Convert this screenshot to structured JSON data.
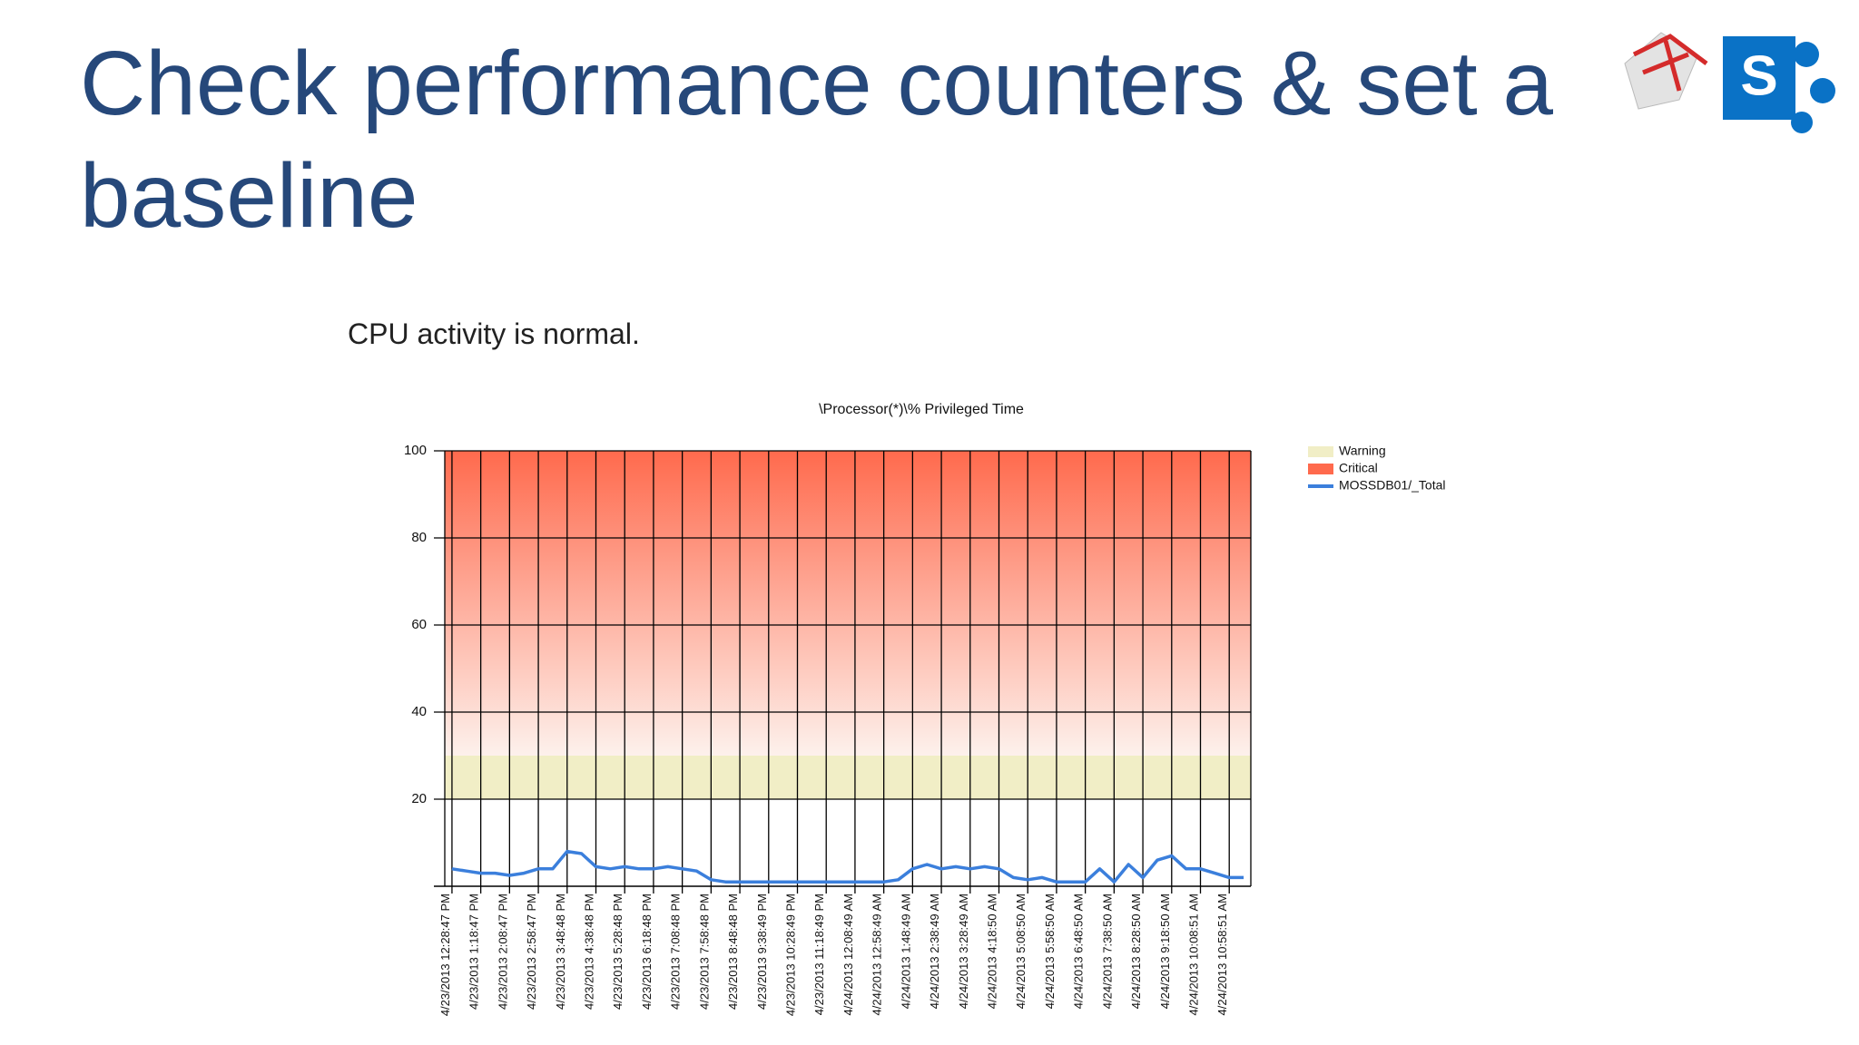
{
  "slide": {
    "title": "Check performance counters & set a baseline",
    "subtitle": "CPU activity is normal.",
    "logo_text": "S"
  },
  "chart_data": {
    "type": "line",
    "title": "\\Processor(*)\\% Privileged Time",
    "categories": [
      "4/23/2013 12:28:47 PM",
      null,
      "4/23/2013 1:18:47 PM",
      null,
      "4/23/2013 2:08:47 PM",
      null,
      "4/23/2013 2:58:47 PM",
      null,
      "4/23/2013 3:48:48 PM",
      null,
      "4/23/2013 4:38:48 PM",
      null,
      "4/23/2013 5:28:48 PM",
      null,
      "4/23/2013 6:18:48 PM",
      null,
      "4/23/2013 7:08:48 PM",
      null,
      "4/23/2013 7:58:48 PM",
      null,
      "4/23/2013 8:48:48 PM",
      null,
      "4/23/2013 9:38:49 PM",
      null,
      "4/23/2013 10:28:49 PM",
      null,
      "4/23/2013 11:18:49 PM",
      null,
      "4/24/2013 12:08:49 AM",
      null,
      "4/24/2013 12:58:49 AM",
      null,
      "4/24/2013 1:48:49 AM",
      null,
      "4/24/2013 2:38:49 AM",
      null,
      "4/24/2013 3:28:49 AM",
      null,
      "4/24/2013 4:18:50 AM",
      null,
      "4/24/2013 5:08:50 AM",
      null,
      "4/24/2013 5:58:50 AM",
      null,
      "4/24/2013 6:48:50 AM",
      null,
      "4/24/2013 7:38:50 AM",
      null,
      "4/24/2013 8:28:50 AM",
      null,
      "4/24/2013 9:18:50 AM",
      null,
      "4/24/2013 10:08:51 AM",
      null,
      "4/24/2013 10:58:51 AM",
      null
    ],
    "series": [
      {
        "name": "MOSSDB01/_Total",
        "color": "#3b7fdc",
        "values": [
          4,
          3.5,
          3,
          3,
          2.5,
          3,
          4,
          4,
          8,
          7.5,
          4.5,
          4,
          4.5,
          4,
          4,
          4.5,
          4,
          3.5,
          1.5,
          1,
          1,
          1,
          1,
          1,
          1,
          1,
          1,
          1,
          1,
          1,
          1,
          1.5,
          4,
          5,
          4,
          4.5,
          4,
          4.5,
          4,
          2,
          1.5,
          2,
          1,
          1,
          1,
          4,
          1,
          5,
          2,
          6,
          7,
          4,
          4,
          3,
          2,
          2
        ]
      }
    ],
    "bands": [
      {
        "name": "Warning",
        "from": 20,
        "to": 30,
        "color": "#f1eec6"
      },
      {
        "name": "Critical",
        "from": 30,
        "to": 100,
        "color": "#ff6a4d"
      }
    ],
    "ylim": [
      0,
      100
    ],
    "yticks": [
      20,
      40,
      60,
      80,
      100
    ],
    "grid": true
  }
}
